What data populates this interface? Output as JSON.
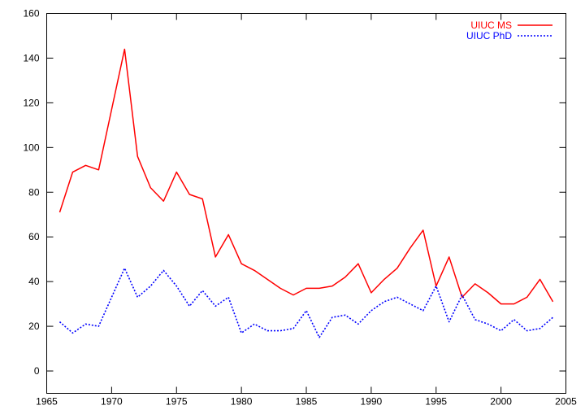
{
  "chart_data": {
    "type": "line",
    "title": "",
    "xlabel": "",
    "ylabel": "",
    "xlim": [
      1965,
      2005
    ],
    "ylim": [
      -10,
      160
    ],
    "xticks": [
      1965,
      1970,
      1975,
      1980,
      1985,
      1990,
      1995,
      2000,
      2005
    ],
    "yticks": [
      0,
      20,
      40,
      60,
      80,
      100,
      120,
      140,
      160
    ],
    "grid": false,
    "legend_position": "top-right",
    "x": [
      1966,
      1967,
      1968,
      1969,
      1970,
      1971,
      1972,
      1973,
      1974,
      1975,
      1976,
      1977,
      1978,
      1979,
      1980,
      1981,
      1982,
      1983,
      1984,
      1985,
      1986,
      1987,
      1988,
      1989,
      1990,
      1991,
      1992,
      1993,
      1994,
      1995,
      1996,
      1997,
      1998,
      1999,
      2000,
      2001,
      2002,
      2003,
      2004
    ],
    "series": [
      {
        "name": "UIUC MS",
        "color": "#ff0000",
        "style": "solid",
        "values": [
          71,
          89,
          92,
          90,
          117,
          144,
          96,
          82,
          76,
          89,
          79,
          77,
          51,
          61,
          48,
          45,
          41,
          37,
          34,
          37,
          37,
          38,
          42,
          48,
          35,
          41,
          46,
          55,
          63,
          38,
          51,
          33,
          39,
          35,
          30,
          30,
          33,
          41,
          31
        ]
      },
      {
        "name": "UIUC PhD",
        "color": "#0000ff",
        "style": "dotted",
        "values": [
          22,
          17,
          21,
          20,
          33,
          46,
          33,
          38,
          45,
          38,
          29,
          36,
          29,
          33,
          17,
          21,
          18,
          18,
          19,
          27,
          15,
          24,
          25,
          21,
          27,
          31,
          33,
          30,
          27,
          38,
          22,
          34,
          23,
          21,
          18,
          23,
          18,
          19,
          24
        ]
      }
    ]
  }
}
